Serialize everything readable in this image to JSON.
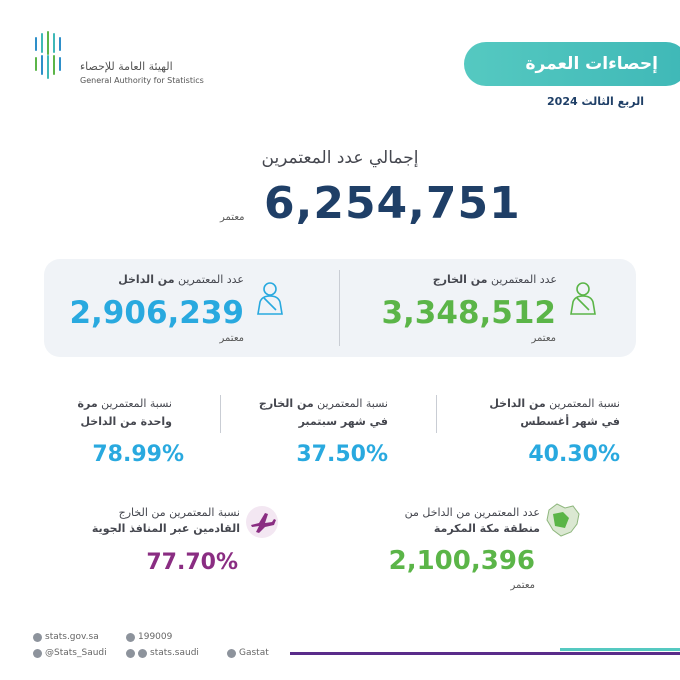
{
  "header": {
    "org_name_ar": "الهيئة العامة للإحصاء",
    "org_name_en": "General Authority for Statistics",
    "title": "إحصاءات العمرة",
    "quarter": "الربع الثالث 2024"
  },
  "total": {
    "label": "إجمالي عدد المعتمرين",
    "value": "6,254,751",
    "unit": "معتمر"
  },
  "outside": {
    "label_prefix": "عدد المعتمرين ",
    "label_bold": "من الخارج",
    "value": "3,348,512",
    "unit": "معتمر"
  },
  "inside": {
    "label_prefix": "عدد المعتمرين ",
    "label_bold": "من الداخل",
    "value": "2,906,239",
    "unit": "معتمر"
  },
  "percentages": [
    {
      "line1_prefix": "نسبة المعتمرين ",
      "line1_bold": "من الداخل",
      "line2": "في شهر أغسطس",
      "value": "40.30%"
    },
    {
      "line1_prefix": "نسبة المعتمرين ",
      "line1_bold": "من الخارج",
      "line2": "في شهر سبتمبر",
      "value": "37.50%"
    },
    {
      "line1_prefix": "نسبة المعتمرين ",
      "line1_bold": "مرة",
      "line2": "واحدة من الداخل",
      "value": "78.99%"
    }
  ],
  "makkah": {
    "line1": "عدد المعتمرين من الداخل من",
    "line2": "منطقة مكة المكرمة",
    "value": "2,100,396",
    "unit": "معتمر"
  },
  "air": {
    "line1": "نسبة المعتمرين من الخارج",
    "line2": "القادمين عبر المنافذ الجوية",
    "value": "77.70%"
  },
  "footer": {
    "website": "stats.gov.sa",
    "phone": "199009",
    "twitter": "@Stats_Saudi",
    "social": "stats.saudi",
    "linkedin": "Gastat"
  },
  "colors": {
    "teal": "#55c9c1",
    "navy": "#1f3f67",
    "green": "#5bb548",
    "blue": "#29a9df",
    "purple": "#8a2d82"
  }
}
